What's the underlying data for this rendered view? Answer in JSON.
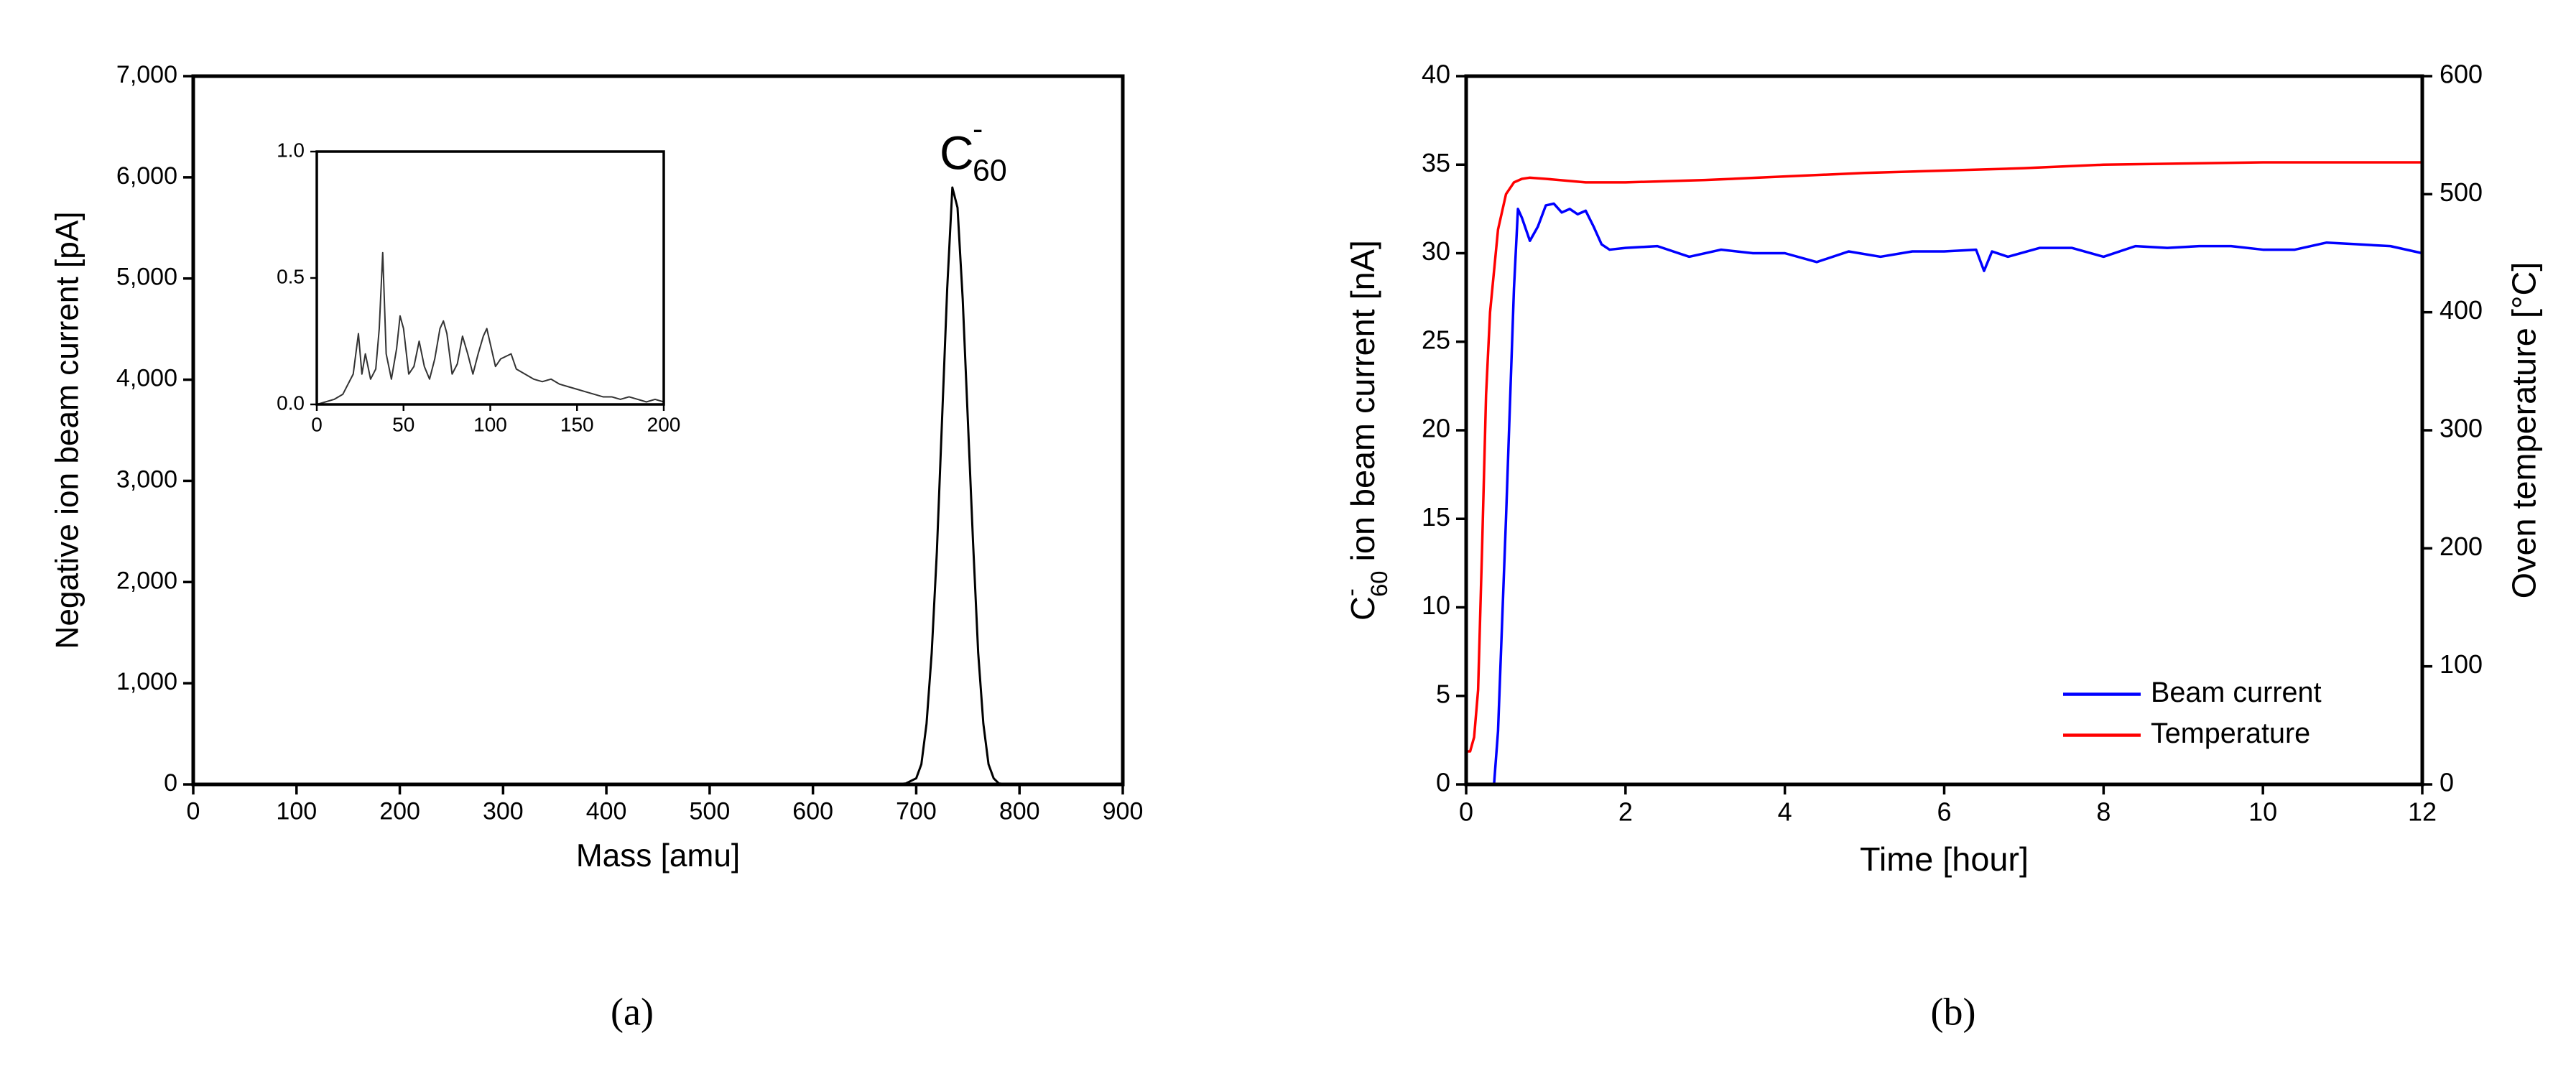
{
  "chart_data": [
    {
      "type": "line",
      "xlabel": "Mass [amu]",
      "ylabel": "Negative ion beam current [pA]",
      "annotation_parts": [
        "C",
        "-",
        "60"
      ],
      "xlim": [
        0,
        900
      ],
      "xticks": [
        0,
        100,
        200,
        300,
        400,
        500,
        600,
        700,
        800,
        900
      ],
      "ylim": [
        0,
        7000
      ],
      "yticks": [
        0,
        {
          "value": 1000,
          "label": "1,000"
        },
        {
          "value": 2000,
          "label": "2,000"
        },
        {
          "value": 3000,
          "label": "3,000"
        },
        {
          "value": 4000,
          "label": "4,000"
        },
        {
          "value": 5000,
          "label": "5,000"
        },
        {
          "value": 6000,
          "label": "6,000"
        },
        {
          "value": 7000,
          "label": "7,000"
        }
      ],
      "series": [
        {
          "color": "#000000",
          "x": [
            0,
            680,
            690,
            700,
            705,
            710,
            715,
            720,
            725,
            730,
            735,
            740,
            745,
            750,
            755,
            760,
            765,
            770,
            775,
            780,
            790
          ],
          "values": [
            0,
            0,
            10,
            60,
            200,
            600,
            1300,
            2300,
            3600,
            4900,
            5900,
            5700,
            4800,
            3600,
            2400,
            1300,
            600,
            200,
            60,
            10,
            0
          ]
        }
      ]
    },
    {
      "type": "line",
      "xlim": [
        0,
        200
      ],
      "xticks": [
        0,
        50,
        100,
        150,
        200
      ],
      "ylim": [
        0,
        1.0
      ],
      "yticks": [
        {
          "value": 0,
          "label": "0.0"
        },
        0.5,
        {
          "value": 1.0,
          "label": "1.0"
        }
      ],
      "series": [
        {
          "color": "#333333",
          "x": [
            0,
            5,
            10,
            15,
            18,
            21,
            24,
            26,
            28,
            31,
            34,
            36,
            38,
            40,
            43,
            46,
            48,
            50,
            53,
            56,
            59,
            62,
            65,
            68,
            71,
            73,
            75,
            78,
            81,
            84,
            87,
            90,
            93,
            96,
            98,
            100,
            103,
            106,
            109,
            112,
            115,
            120,
            125,
            130,
            135,
            140,
            145,
            150,
            155,
            160,
            165,
            170,
            175,
            180,
            185,
            190,
            195,
            200
          ],
          "values": [
            0,
            0.01,
            0.02,
            0.04,
            0.08,
            0.12,
            0.28,
            0.12,
            0.2,
            0.1,
            0.14,
            0.3,
            0.6,
            0.2,
            0.1,
            0.22,
            0.35,
            0.3,
            0.12,
            0.15,
            0.25,
            0.15,
            0.1,
            0.18,
            0.3,
            0.33,
            0.28,
            0.12,
            0.16,
            0.27,
            0.2,
            0.12,
            0.2,
            0.27,
            0.3,
            0.24,
            0.15,
            0.18,
            0.19,
            0.2,
            0.14,
            0.12,
            0.1,
            0.09,
            0.1,
            0.08,
            0.07,
            0.06,
            0.05,
            0.04,
            0.03,
            0.03,
            0.02,
            0.03,
            0.02,
            0.01,
            0.02,
            0.01
          ]
        }
      ]
    },
    {
      "type": "line",
      "xlabel": "Time [hour]",
      "ylabel_parts": [
        "C",
        "-",
        "60",
        " ion beam current [nA]"
      ],
      "y2label": "Oven temperature [°C]",
      "legend": "lower right",
      "xlim": [
        0,
        12
      ],
      "xticks": [
        0,
        2,
        4,
        6,
        8,
        10,
        12
      ],
      "ylim": [
        0,
        40
      ],
      "yticks": [
        0,
        5,
        10,
        15,
        20,
        25,
        30,
        35,
        40
      ],
      "y2lim": [
        0,
        600
      ],
      "y2ticks": [
        0,
        100,
        200,
        300,
        400,
        500,
        600
      ],
      "series": [
        {
          "name": "Beam current",
          "color": "#0000ff",
          "x": [
            0.3,
            0.35,
            0.4,
            0.5,
            0.6,
            0.65,
            0.7,
            0.8,
            0.9,
            1.0,
            1.1,
            1.2,
            1.3,
            1.4,
            1.5,
            1.6,
            1.7,
            1.8,
            2,
            2.4,
            2.8,
            3.2,
            3.6,
            4,
            4.4,
            4.8,
            5.2,
            5.6,
            6,
            6.4,
            6.5,
            6.6,
            6.8,
            7.2,
            7.6,
            8,
            8.4,
            8.8,
            9.2,
            9.6,
            10,
            10.4,
            10.8,
            11.2,
            11.6,
            12
          ],
          "values": [
            0,
            0,
            3,
            15,
            28,
            32.5,
            32,
            30.7,
            31.5,
            32.7,
            32.8,
            32.3,
            32.5,
            32.2,
            32.4,
            31.5,
            30.5,
            30.2,
            30.3,
            30.4,
            29.8,
            30.2,
            30,
            30,
            29.5,
            30.1,
            29.8,
            30.1,
            30.1,
            30.2,
            29,
            30.1,
            29.8,
            30.3,
            30.3,
            29.8,
            30.4,
            30.3,
            30.4,
            30.4,
            30.2,
            30.2,
            30.6,
            30.5,
            30.4,
            30
          ]
        },
        {
          "name": "Temperature",
          "color": "#ff0000",
          "axis": "y2",
          "x": [
            0,
            0.05,
            0.1,
            0.15,
            0.2,
            0.25,
            0.3,
            0.4,
            0.5,
            0.6,
            0.7,
            0.8,
            1,
            1.5,
            2,
            3,
            4,
            5,
            6,
            7,
            8,
            9,
            10,
            11,
            12
          ],
          "values": [
            28,
            28,
            40,
            80,
            200,
            330,
            400,
            470,
            500,
            510,
            513,
            514,
            513,
            510,
            510,
            512,
            515,
            518,
            520,
            522,
            525,
            526,
            527,
            527,
            527
          ]
        }
      ]
    }
  ],
  "panel_labels": [
    "(a)",
    "(b)"
  ]
}
